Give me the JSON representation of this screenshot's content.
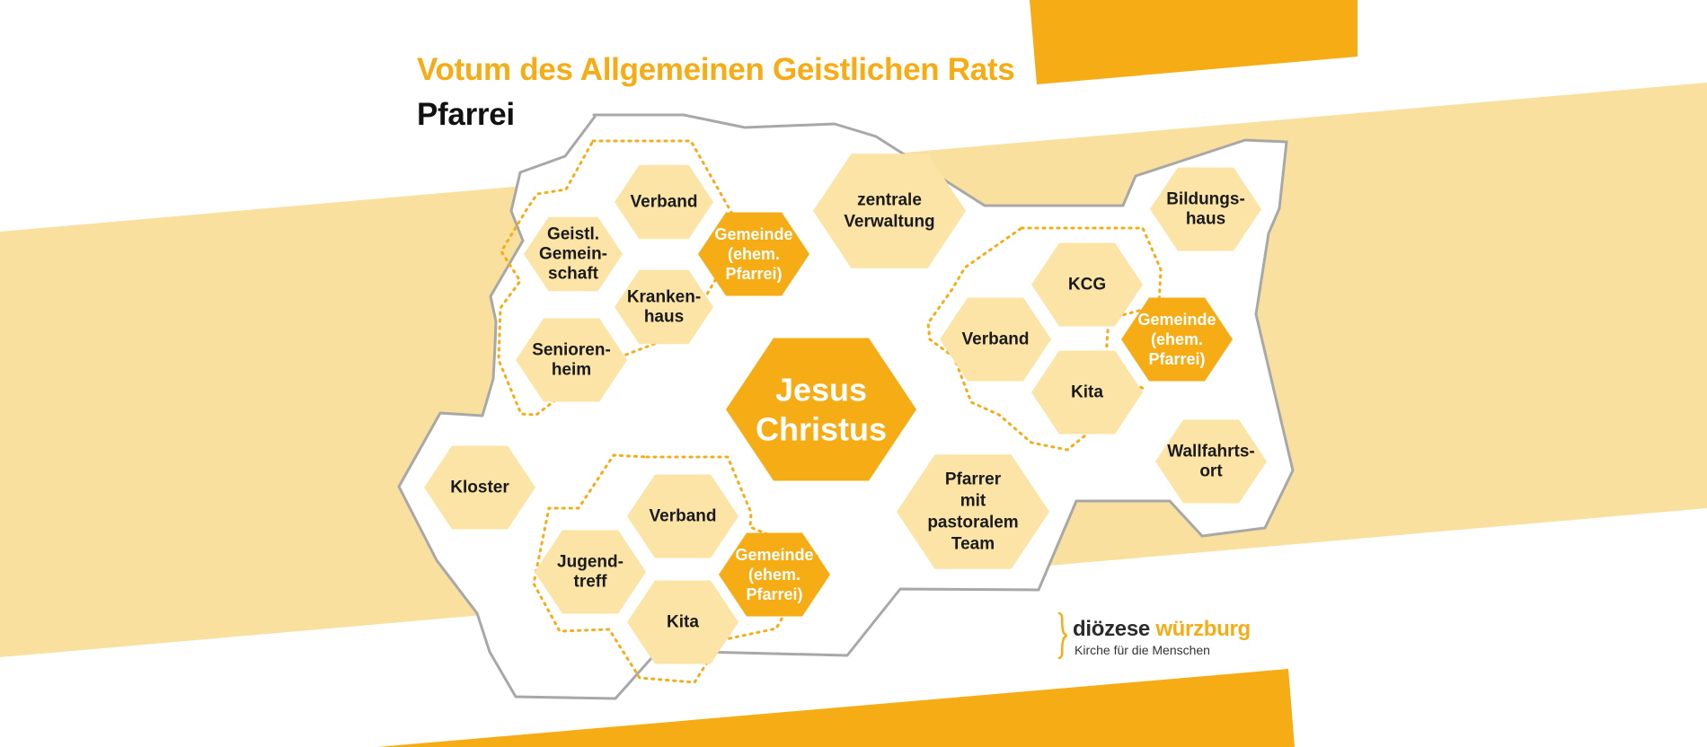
{
  "header": {
    "title": "Votum des Allgemeinen Geistlichen Rats",
    "subtitle": "Pfarrei"
  },
  "colors": {
    "accent": "#F6AC14",
    "light": "#FBE4A6",
    "band": "#FAE09E",
    "outline": "#A8A8A8",
    "text": "#1a1a1a"
  },
  "center": [
    "Jesus",
    "Christus"
  ],
  "clusters": {
    "top_left": {
      "verband": [
        "Verband"
      ],
      "geistl": [
        "Geistl.",
        "Gemein-",
        "schaft"
      ],
      "gemeinde": [
        "Gemeinde",
        "(ehem.",
        "Pfarrei)"
      ],
      "krankenhaus": [
        "Kranken-",
        "haus"
      ],
      "seniorenheim": [
        "Senioren-",
        "heim"
      ]
    },
    "right": {
      "kcg": [
        "KCG"
      ],
      "verband": [
        "Verband"
      ],
      "gemeinde": [
        "Gemeinde",
        "(ehem.",
        "Pfarrei)"
      ],
      "kita": [
        "Kita"
      ]
    },
    "bottom_left": {
      "verband": [
        "Verband"
      ],
      "jugendtreff": [
        "Jugend-",
        "treff"
      ],
      "gemeinde": [
        "Gemeinde",
        "(ehem.",
        "Pfarrei)"
      ],
      "kita": [
        "Kita"
      ]
    }
  },
  "standalone": {
    "zentrale_verwaltung": [
      "zentrale",
      "Verwaltung"
    ],
    "bildungshaus": [
      "Bildungs-",
      "haus"
    ],
    "kloster": [
      "Kloster"
    ],
    "pfarrer": [
      "Pfarrer",
      "mit",
      "pastoralem",
      "Team"
    ],
    "wallfahrtsort": [
      "Wallfahrts-",
      "ort"
    ]
  },
  "logo": {
    "name_part1": "diözese",
    "name_part2": "würzburg",
    "tagline": "Kirche für die Menschen"
  }
}
